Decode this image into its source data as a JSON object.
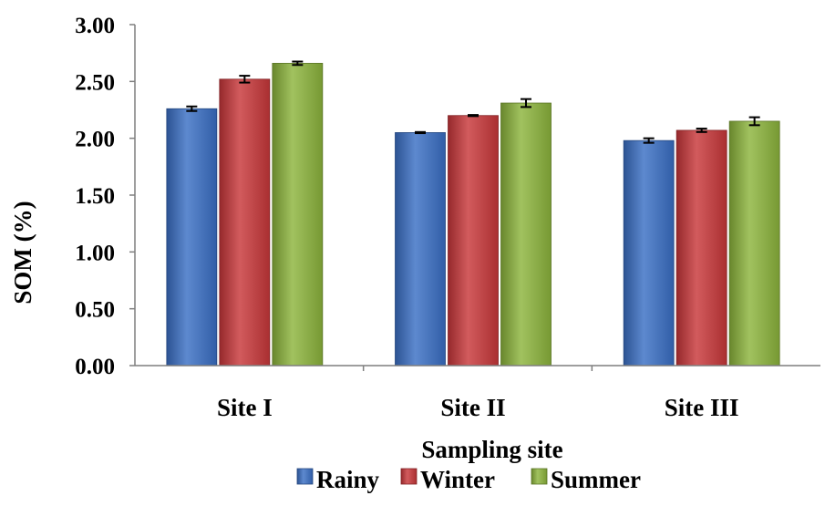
{
  "chart_data": {
    "type": "bar",
    "title": "",
    "xlabel": "Sampling site",
    "ylabel": "SOM (%)",
    "ylim": [
      0,
      3.0
    ],
    "yticks": [
      "0.00",
      "0.50",
      "1.00",
      "1.50",
      "2.00",
      "2.50",
      "3.00"
    ],
    "categories": [
      "Site I",
      "Site II",
      "Site III"
    ],
    "series": [
      {
        "name": "Rainy",
        "values": [
          2.26,
          2.05,
          1.98
        ],
        "errors": [
          0.02,
          0.005,
          0.02
        ],
        "color": "#3a6fc4"
      },
      {
        "name": "Winter",
        "values": [
          2.52,
          2.2,
          2.07
        ],
        "errors": [
          0.03,
          0.005,
          0.015
        ],
        "color": "#c8373a"
      },
      {
        "name": "Summer",
        "values": [
          2.66,
          2.31,
          2.15
        ],
        "errors": [
          0.015,
          0.035,
          0.035
        ],
        "color": "#8cb43c"
      }
    ],
    "grid": false,
    "legend_position": "bottom"
  }
}
